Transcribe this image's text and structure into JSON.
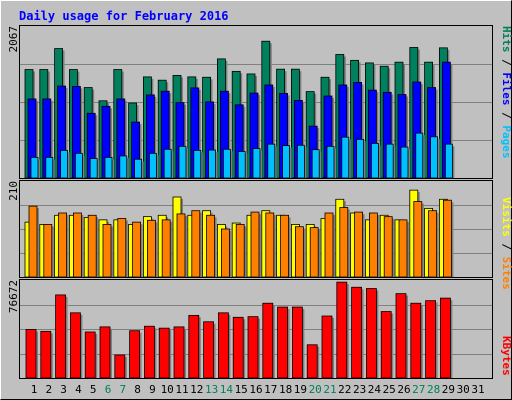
{
  "chart_data": [
    {
      "type": "bar",
      "title": "Daily usage for February 2016",
      "categories": [
        "1",
        "2",
        "3",
        "4",
        "5",
        "6",
        "7",
        "8",
        "9",
        "10",
        "11",
        "12",
        "13",
        "14",
        "15",
        "16",
        "17",
        "18",
        "19",
        "20",
        "21",
        "22",
        "23",
        "24",
        "25",
        "26",
        "27",
        "28",
        "29",
        "30",
        "31"
      ],
      "weekend_days": [
        "6",
        "7",
        "13",
        "14",
        "20",
        "21",
        "27",
        "28"
      ],
      "ymax_label": "2067",
      "ylim": [
        0,
        2067
      ],
      "series": [
        {
          "name": "Hits",
          "color": "#00805c",
          "values": [
            1475,
            1475,
            1760,
            1475,
            1230,
            1050,
            1475,
            1020,
            1375,
            1330,
            1395,
            1375,
            1370,
            1620,
            1450,
            1415,
            1860,
            1480,
            1480,
            1175,
            1370,
            1680,
            1600,
            1565,
            1520,
            1575,
            1775,
            1575,
            1770,
            null,
            null
          ]
        },
        {
          "name": "Files",
          "color": "#0000ff",
          "values": [
            1075,
            1075,
            1250,
            1245,
            880,
            975,
            1075,
            760,
            1130,
            1180,
            1025,
            1225,
            1035,
            1180,
            995,
            1155,
            1265,
            1150,
            1055,
            705,
            1115,
            1265,
            1300,
            1195,
            1165,
            1135,
            1305,
            1230,
            1575,
            null,
            null
          ]
        },
        {
          "name": "Pages",
          "color": "#00c0ff",
          "values": [
            280,
            280,
            375,
            335,
            265,
            280,
            300,
            255,
            335,
            390,
            430,
            375,
            380,
            390,
            360,
            400,
            460,
            440,
            445,
            385,
            430,
            555,
            525,
            470,
            460,
            420,
            610,
            560,
            460,
            null,
            null
          ]
        }
      ]
    },
    {
      "type": "bar",
      "ymax_label": "210",
      "ylim": [
        0,
        210
      ],
      "series": [
        {
          "name": "Visits",
          "color": "#ffff00",
          "values": [
            120,
            115,
            135,
            135,
            130,
            125,
            125,
            115,
            132,
            135,
            175,
            135,
            145,
            115,
            118,
            135,
            145,
            135,
            115,
            115,
            128,
            170,
            140,
            125,
            135,
            125,
            190,
            150,
            170,
            null,
            null
          ]
        },
        {
          "name": "Sites",
          "color": "#ff8000",
          "values": [
            155,
            115,
            140,
            140,
            135,
            115,
            128,
            120,
            124,
            125,
            138,
            145,
            135,
            105,
            115,
            142,
            140,
            135,
            110,
            108,
            140,
            152,
            142,
            140,
            132,
            125,
            165,
            145,
            168,
            null,
            null
          ]
        }
      ]
    },
    {
      "type": "bar",
      "ymax_label": "76672",
      "ylim": [
        0,
        76672
      ],
      "series": [
        {
          "name": "KBytes",
          "color": "#ff0000",
          "values": [
            38000,
            36500,
            65000,
            51000,
            36000,
            40000,
            18000,
            37000,
            40500,
            39000,
            40000,
            49000,
            44000,
            51000,
            47500,
            48000,
            58500,
            55500,
            55500,
            26000,
            48500,
            75000,
            71000,
            70000,
            52000,
            66000,
            58500,
            60500,
            62500,
            null,
            null
          ]
        }
      ]
    }
  ]
}
